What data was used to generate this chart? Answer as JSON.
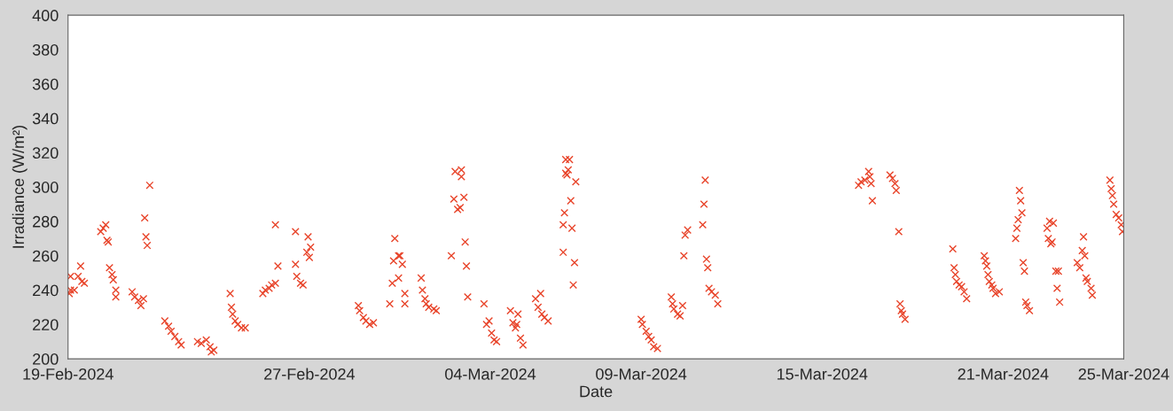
{
  "chart_data": {
    "type": "scatter",
    "xlabel": "Date",
    "ylabel": "Irradiance (W/m²)",
    "marker": "cross",
    "grid": false,
    "xlim": [
      "2024-02-19",
      "2024-03-25"
    ],
    "xticks": [
      {
        "value": "2024-02-19",
        "label": "19-Feb-2024"
      },
      {
        "value": "2024-02-27",
        "label": "27-Feb-2024"
      },
      {
        "value": "2024-03-04",
        "label": "04-Mar-2024"
      },
      {
        "value": "2024-03-09",
        "label": "09-Mar-2024"
      },
      {
        "value": "2024-03-15",
        "label": "15-Mar-2024"
      },
      {
        "value": "2024-03-21",
        "label": "21-Mar-2024"
      },
      {
        "value": "2024-03-25",
        "label": "25-Mar-2024"
      }
    ],
    "ylim": [
      200,
      400
    ],
    "yticks": [
      200,
      220,
      240,
      260,
      280,
      300,
      320,
      340,
      360,
      380,
      400
    ],
    "series": [
      {
        "color": "#e8442a",
        "x": [
          "2024-02-19T01:00",
          "2024-02-19T02:00",
          "2024-02-19T02:00",
          "2024-02-19T05:00",
          "2024-02-19T08:00",
          "2024-02-19T10:00",
          "2024-02-19T11:00",
          "2024-02-19T13:00",
          "2024-02-20T02:00",
          "2024-02-20T04:00",
          "2024-02-20T06:00",
          "2024-02-20T07:00",
          "2024-02-20T08:00",
          "2024-02-20T09:00",
          "2024-02-20T11:00",
          "2024-02-20T12:00",
          "2024-02-20T14:00",
          "2024-02-20T14:00",
          "2024-02-21T03:00",
          "2024-02-21T05:00",
          "2024-02-21T08:00",
          "2024-02-21T10:00",
          "2024-02-21T12:00",
          "2024-02-21T13:00",
          "2024-02-21T14:00",
          "2024-02-21T15:00",
          "2024-02-21T17:00",
          "2024-02-22T05:00",
          "2024-02-22T08:00",
          "2024-02-22T10:00",
          "2024-02-22T13:00",
          "2024-02-22T16:00",
          "2024-02-22T18:00",
          "2024-02-23T07:00",
          "2024-02-23T10:00",
          "2024-02-23T14:00",
          "2024-02-23T17:00",
          "2024-02-23T20:00",
          "2024-02-23T18:00",
          "2024-02-24T09:00",
          "2024-02-24T10:00",
          "2024-02-24T11:00",
          "2024-02-24T13:00",
          "2024-02-24T15:00",
          "2024-02-24T18:00",
          "2024-02-24T21:00",
          "2024-02-25T11:00",
          "2024-02-25T13:00",
          "2024-02-25T16:00",
          "2024-02-25T18:00",
          "2024-02-25T21:00",
          "2024-02-25T21:00",
          "2024-02-25T23:00",
          "2024-02-26T13:00",
          "2024-02-26T13:00",
          "2024-02-26T14:00",
          "2024-02-26T17:00",
          "2024-02-26T19:00",
          "2024-02-26T22:00",
          "2024-02-26T23:00",
          "2024-02-27T00:00",
          "2024-02-27T01:00",
          "2024-02-28T15:00",
          "2024-02-28T16:00",
          "2024-02-28T19:00",
          "2024-02-28T21:00",
          "2024-02-29T00:00",
          "2024-02-29T03:00",
          "2024-02-29T16:00",
          "2024-02-29T18:00",
          "2024-02-29T19:00",
          "2024-02-29T20:00",
          "2024-02-29T23:00",
          "2024-02-29T23:00",
          "2024-03-01T00:00",
          "2024-03-01T02:00",
          "2024-03-01T04:00",
          "2024-03-01T04:00",
          "2024-03-01T17:00",
          "2024-03-01T18:00",
          "2024-03-01T20:00",
          "2024-03-01T21:00",
          "2024-03-01T23:00",
          "2024-03-02T03:00",
          "2024-03-02T05:00",
          "2024-03-02T20:00",
          "2024-03-03T01:00",
          "2024-03-03T01:00",
          "2024-03-02T19:00",
          "2024-03-03T03:00",
          "2024-03-02T22:00",
          "2024-03-03T00:00",
          "2024-03-03T04:00",
          "2024-03-02T17:00",
          "2024-03-03T05:00",
          "2024-03-03T06:00",
          "2024-03-03T19:00",
          "2024-03-03T21:00",
          "2024-03-03T23:00",
          "2024-03-04T01:00",
          "2024-03-04T03:00",
          "2024-03-04T05:00",
          "2024-03-04T16:00",
          "2024-03-04T22:00",
          "2024-03-04T18:00",
          "2024-03-04T20:00",
          "2024-03-04T21:00",
          "2024-03-05T00:00",
          "2024-03-05T02:00",
          "2024-03-05T12:00",
          "2024-03-05T16:00",
          "2024-03-05T14:00",
          "2024-03-05T17:00",
          "2024-03-05T19:00",
          "2024-03-05T22:00",
          "2024-03-06T12:00",
          "2024-03-06T15:00",
          "2024-03-06T12:00",
          "2024-03-06T14:00",
          "2024-03-06T13:00",
          "2024-03-06T20:00",
          "2024-03-06T16:00",
          "2024-03-06T11:00",
          "2024-03-06T10:00",
          "2024-03-06T17:00",
          "2024-03-06T10:00",
          "2024-03-06T19:00",
          "2024-03-06T18:00",
          "2024-03-09T00:00",
          "2024-03-09T01:00",
          "2024-03-09T04:00",
          "2024-03-09T06:00",
          "2024-03-09T08:00",
          "2024-03-09T10:00",
          "2024-03-09T13:00",
          "2024-03-10T00:00",
          "2024-03-10T01:00",
          "2024-03-10T02:00",
          "2024-03-10T05:00",
          "2024-03-10T07:00",
          "2024-03-10T09:00",
          "2024-03-10T10:00",
          "2024-03-10T11:00",
          "2024-03-10T13:00",
          "2024-03-11T03:00",
          "2024-03-11T02:00",
          "2024-03-11T01:00",
          "2024-03-11T04:00",
          "2024-03-11T05:00",
          "2024-03-11T06:00",
          "2024-03-11T08:00",
          "2024-03-11T11:00",
          "2024-03-11T13:00",
          "2024-03-16T05:00",
          "2024-03-16T07:00",
          "2024-03-16T10:00",
          "2024-03-16T13:00",
          "2024-03-16T14:00",
          "2024-03-16T15:00",
          "2024-03-16T16:00",
          "2024-03-17T06:00",
          "2024-03-17T08:00",
          "2024-03-17T10:00",
          "2024-03-17T11:00",
          "2024-03-17T13:00",
          "2024-03-17T14:00",
          "2024-03-17T15:00",
          "2024-03-17T16:00",
          "2024-03-17T18:00",
          "2024-03-19T08:00",
          "2024-03-19T09:00",
          "2024-03-19T10:00",
          "2024-03-19T11:00",
          "2024-03-19T13:00",
          "2024-03-19T15:00",
          "2024-03-19T17:00",
          "2024-03-19T19:00",
          "2024-03-20T09:00",
          "2024-03-20T10:00",
          "2024-03-20T11:00",
          "2024-03-20T12:00",
          "2024-03-20T13:00",
          "2024-03-20T15:00",
          "2024-03-20T16:00",
          "2024-03-20T18:00",
          "2024-03-20T21:00",
          "2024-03-21T13:00",
          "2024-03-21T14:00",
          "2024-03-21T15:00",
          "2024-03-21T12:00",
          "2024-03-21T11:00",
          "2024-03-21T10:00",
          "2024-03-21T16:00",
          "2024-03-21T17:00",
          "2024-03-21T18:00",
          "2024-03-21T19:00",
          "2024-03-21T21:00",
          "2024-03-22T11:00",
          "2024-03-22T13:00",
          "2024-03-22T16:00",
          "2024-03-22T12:00",
          "2024-03-22T15:00",
          "2024-03-22T14:00",
          "2024-03-22T18:00",
          "2024-03-22T20:00",
          "2024-03-22T19:00",
          "2024-03-22T21:00",
          "2024-03-23T16:00",
          "2024-03-23T15:00",
          "2024-03-23T17:00",
          "2024-03-23T11:00",
          "2024-03-23T13:00",
          "2024-03-23T18:00",
          "2024-03-23T19:00",
          "2024-03-23T22:00",
          "2024-03-23T23:00",
          "2024-03-24T13:00",
          "2024-03-24T14:00",
          "2024-03-24T15:00",
          "2024-03-24T16:00",
          "2024-03-24T18:00",
          "2024-03-24T20:00",
          "2024-03-24T22:00",
          "2024-03-24T23:00"
        ],
        "values": [
          238,
          240,
          248,
          240,
          248,
          254,
          245,
          244,
          274,
          276,
          278,
          269,
          268,
          253,
          249,
          246,
          240,
          236,
          239,
          236,
          234,
          231,
          235,
          282,
          271,
          266,
          301,
          222,
          219,
          216,
          213,
          210,
          208,
          210,
          209,
          211,
          207,
          205,
          204,
          238,
          230,
          226,
          222,
          220,
          218,
          218,
          238,
          240,
          241,
          243,
          244,
          278,
          254,
          255,
          274,
          248,
          244,
          243,
          262,
          271,
          259,
          265,
          231,
          228,
          224,
          222,
          220,
          221,
          232,
          244,
          257,
          270,
          247,
          260,
          260,
          255,
          238,
          232,
          247,
          240,
          235,
          232,
          230,
          229,
          228,
          309,
          310,
          306,
          293,
          294,
          287,
          288,
          268,
          260,
          254,
          236,
          232,
          220,
          222,
          215,
          211,
          210,
          228,
          226,
          221,
          218,
          220,
          212,
          208,
          235,
          238,
          230,
          226,
          224,
          222,
          316,
          316,
          308,
          310,
          307,
          303,
          292,
          285,
          278,
          276,
          262,
          256,
          243,
          223,
          220,
          216,
          213,
          211,
          207,
          206,
          236,
          232,
          229,
          226,
          225,
          231,
          260,
          272,
          275,
          304,
          290,
          278,
          258,
          253,
          241,
          239,
          237,
          232,
          301,
          303,
          304,
          309,
          306,
          302,
          292,
          307,
          305,
          302,
          298,
          274,
          232,
          228,
          226,
          223,
          264,
          253,
          249,
          245,
          243,
          242,
          239,
          235,
          260,
          257,
          254,
          249,
          245,
          243,
          241,
          238,
          239,
          298,
          292,
          285,
          281,
          276,
          270,
          256,
          251,
          233,
          231,
          228,
          276,
          280,
          279,
          270,
          268,
          267,
          251,
          251,
          241,
          233,
          271,
          263,
          260,
          256,
          253,
          247,
          245,
          241,
          237,
          304,
          299,
          295,
          290,
          284,
          282,
          278,
          274
        ]
      }
    ]
  }
}
